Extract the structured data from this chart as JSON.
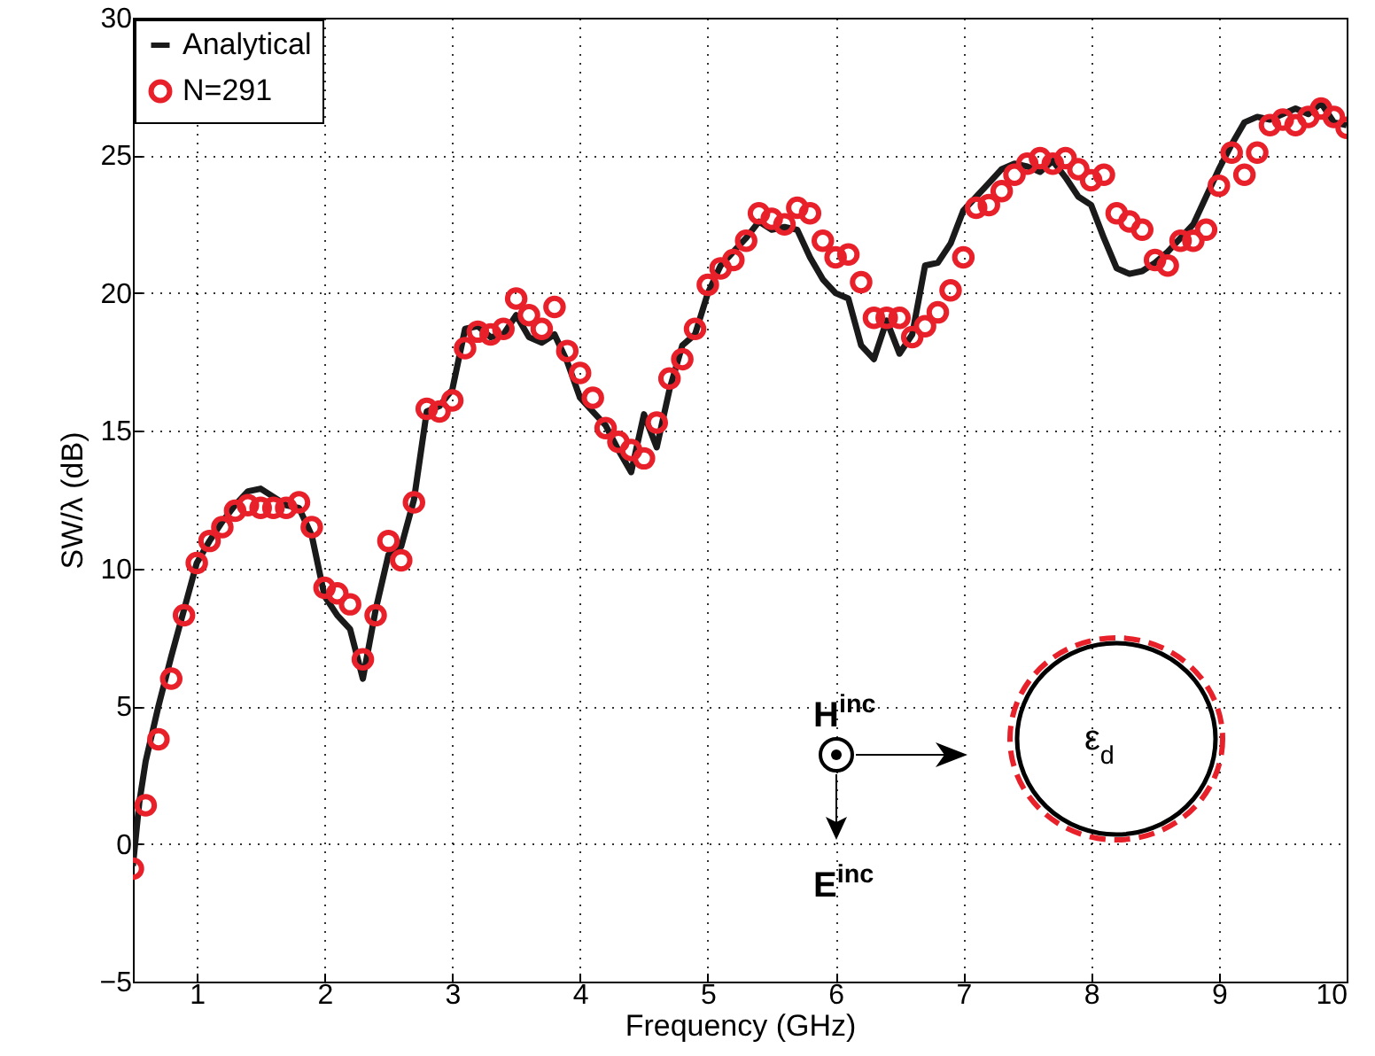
{
  "chart_data": {
    "type": "line",
    "xlabel": "Frequency (GHz)",
    "ylabel": "SW/λ (dB)",
    "xlim": [
      0.5,
      10
    ],
    "ylim": [
      -5,
      30
    ],
    "xticks": [
      1,
      2,
      3,
      4,
      5,
      6,
      7,
      8,
      9,
      10
    ],
    "yticks": [
      -5,
      0,
      5,
      10,
      15,
      20,
      25,
      30
    ],
    "grid": true,
    "legend": "top left",
    "annotations": [
      "H$^{inc}$",
      "E$^{inc}$",
      "ε$_{d}$"
    ],
    "series": [
      {
        "name": "Analytical",
        "type": "line",
        "marker": "none",
        "line_style": "solid",
        "color": "#1a1a1a",
        "x": [
          0.5,
          0.55,
          0.6,
          0.7,
          0.8,
          0.9,
          1.0,
          1.1,
          1.2,
          1.3,
          1.4,
          1.5,
          1.6,
          1.7,
          1.8,
          1.9,
          2.0,
          2.1,
          2.2,
          2.3,
          2.4,
          2.5,
          2.6,
          2.7,
          2.8,
          2.9,
          3.0,
          3.1,
          3.2,
          3.3,
          3.4,
          3.5,
          3.6,
          3.7,
          3.8,
          3.9,
          4.0,
          4.1,
          4.2,
          4.3,
          4.4,
          4.5,
          4.6,
          4.7,
          4.8,
          4.9,
          5.0,
          5.1,
          5.2,
          5.3,
          5.4,
          5.5,
          5.6,
          5.7,
          5.8,
          5.9,
          6.0,
          6.1,
          6.2,
          6.3,
          6.4,
          6.5,
          6.6,
          6.7,
          6.8,
          6.9,
          7.0,
          7.1,
          7.2,
          7.3,
          7.4,
          7.5,
          7.6,
          7.7,
          7.8,
          7.9,
          8.0,
          8.1,
          8.2,
          8.3,
          8.4,
          8.5,
          8.6,
          8.7,
          8.8,
          8.9,
          9.0,
          9.1,
          9.2,
          9.3,
          9.4,
          9.5,
          9.6,
          9.7,
          9.8,
          9.9,
          10.0
        ],
        "values": [
          -0.8,
          1.5,
          3.0,
          5.0,
          6.8,
          8.5,
          10.2,
          11.0,
          11.7,
          12.3,
          12.8,
          12.9,
          12.6,
          12.3,
          12.2,
          11.2,
          9.0,
          8.3,
          7.8,
          6.0,
          8.5,
          10.5,
          10.8,
          12.5,
          15.7,
          15.9,
          16.5,
          18.7,
          18.8,
          18.4,
          18.5,
          19.2,
          18.4,
          18.2,
          18.5,
          17.5,
          16.2,
          15.7,
          15.2,
          14.3,
          13.5,
          15.6,
          14.4,
          16.5,
          18.1,
          18.5,
          20.0,
          21.0,
          21.5,
          22.0,
          22.6,
          22.3,
          22.4,
          22.3,
          21.3,
          20.5,
          20.0,
          19.8,
          18.1,
          17.6,
          19.0,
          17.8,
          18.5,
          21.0,
          21.1,
          21.8,
          23.0,
          23.5,
          24.0,
          24.5,
          24.7,
          24.6,
          24.4,
          24.8,
          24.2,
          23.5,
          23.2,
          22.0,
          20.9,
          20.7,
          20.8,
          21.1,
          21.5,
          22.0,
          22.5,
          23.5,
          24.5,
          25.4,
          26.2,
          26.4,
          26.3,
          26.5,
          26.7,
          26.5,
          26.9,
          26.2,
          26.1
        ]
      },
      {
        "name": "N=291",
        "type": "scatter",
        "marker": "circle",
        "color": "#e8202a",
        "x": [
          0.5,
          0.6,
          0.7,
          0.8,
          0.9,
          1.0,
          1.1,
          1.2,
          1.3,
          1.4,
          1.5,
          1.6,
          1.7,
          1.8,
          1.9,
          2.0,
          2.1,
          2.2,
          2.3,
          2.4,
          2.5,
          2.6,
          2.7,
          2.8,
          2.9,
          3.0,
          3.1,
          3.2,
          3.3,
          3.4,
          3.5,
          3.6,
          3.7,
          3.8,
          3.9,
          4.0,
          4.1,
          4.2,
          4.3,
          4.4,
          4.5,
          4.6,
          4.7,
          4.8,
          4.9,
          5.0,
          5.1,
          5.2,
          5.3,
          5.4,
          5.5,
          5.6,
          5.7,
          5.8,
          5.9,
          6.0,
          6.1,
          6.2,
          6.3,
          6.4,
          6.5,
          6.6,
          6.7,
          6.8,
          6.9,
          7.0,
          7.1,
          7.2,
          7.3,
          7.4,
          7.5,
          7.6,
          7.7,
          7.8,
          7.9,
          8.0,
          8.1,
          8.2,
          8.3,
          8.4,
          8.5,
          8.6,
          8.7,
          8.8,
          8.9,
          9.0,
          9.1,
          9.2,
          9.3,
          9.4,
          9.5,
          9.6,
          9.7,
          9.8,
          9.9,
          10.0
        ],
        "values": [
          -0.9,
          1.4,
          3.8,
          6.0,
          8.3,
          10.2,
          11.0,
          11.5,
          12.1,
          12.3,
          12.2,
          12.2,
          12.2,
          12.4,
          11.5,
          9.3,
          9.1,
          8.7,
          6.7,
          8.3,
          11.0,
          10.3,
          12.4,
          15.8,
          15.7,
          16.1,
          18.0,
          18.6,
          18.5,
          18.7,
          19.8,
          19.2,
          18.7,
          19.5,
          17.9,
          17.1,
          16.2,
          15.1,
          14.6,
          14.3,
          14.0,
          15.3,
          16.9,
          17.6,
          18.7,
          20.3,
          20.9,
          21.2,
          21.9,
          22.9,
          22.7,
          22.5,
          23.1,
          22.9,
          21.9,
          21.3,
          21.4,
          20.4,
          19.1,
          19.1,
          19.1,
          18.4,
          18.8,
          19.3,
          20.1,
          21.3,
          23.1,
          23.2,
          23.7,
          24.3,
          24.7,
          24.9,
          24.7,
          24.9,
          24.5,
          24.1,
          24.3,
          22.9,
          22.6,
          22.3,
          21.2,
          21.0,
          21.9,
          21.9,
          22.3,
          23.9,
          25.1,
          24.3,
          25.1,
          26.1,
          26.3,
          26.1,
          26.4,
          26.7,
          26.4,
          26.0
        ]
      }
    ]
  }
}
